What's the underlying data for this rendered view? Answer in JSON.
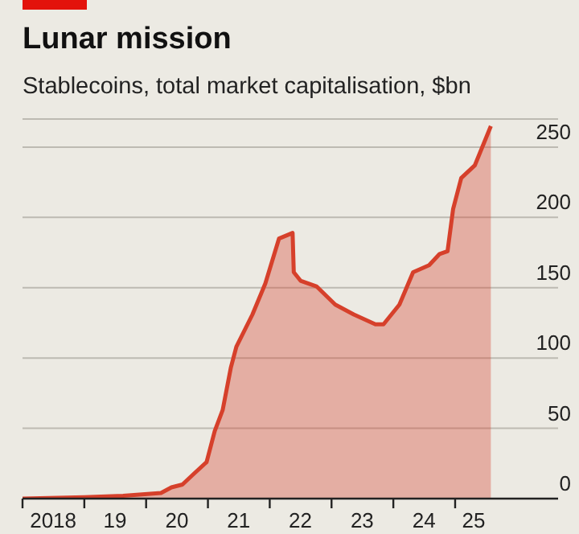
{
  "chart_data": {
    "type": "area",
    "title": "Lunar mission",
    "subtitle": "Stablecoins, total market capitalisation, $bn",
    "x": [
      "2018-01-01",
      "2019-01-01",
      "2019-08-18",
      "2020-03-29",
      "2020-05-30",
      "2020-08-03",
      "2020-10-04",
      "2020-12-24",
      "2021-02-10",
      "2021-03-29",
      "2021-05-16",
      "2021-06-18",
      "2021-09-21",
      "2021-12-06",
      "2022-02-25",
      "2022-05-16",
      "2022-05-23",
      "2022-07-02",
      "2022-10-04",
      "2023-01-23",
      "2023-05-12",
      "2023-09-17",
      "2023-11-04",
      "2024-02-06",
      "2024-04-27",
      "2024-07-31",
      "2024-10-01",
      "2024-11-17",
      "2024-12-20",
      "2025-02-06",
      "2025-04-27",
      "2025-07-31"
    ],
    "series": [
      {
        "color": "#d6402b",
        "values": [
          0,
          1,
          2,
          4,
          8,
          10,
          17,
          26,
          48,
          63,
          93,
          108,
          131,
          153,
          185,
          189,
          161,
          155,
          151,
          138,
          131,
          124,
          124,
          138,
          161,
          166,
          174,
          176,
          206,
          228,
          237,
          265
        ]
      }
    ],
    "xlim": [
      "2018-01-01",
      "2026-09-01"
    ],
    "xticks": [
      {
        "value": "2018-01-01",
        "label": null
      },
      {
        "value": "2018-07-01",
        "label": "2018"
      },
      {
        "value": "2019-01-01",
        "label": null
      },
      {
        "value": "2019-07-01",
        "label": "19"
      },
      {
        "value": "2020-01-01",
        "label": null
      },
      {
        "value": "2020-07-01",
        "label": "20"
      },
      {
        "value": "2021-01-01",
        "label": null
      },
      {
        "value": "2021-07-01",
        "label": "21"
      },
      {
        "value": "2022-01-01",
        "label": null
      },
      {
        "value": "2022-07-01",
        "label": "22"
      },
      {
        "value": "2023-01-01",
        "label": null
      },
      {
        "value": "2023-07-01",
        "label": "23"
      },
      {
        "value": "2024-01-01",
        "label": null
      },
      {
        "value": "2024-07-01",
        "label": "24"
      },
      {
        "value": "2025-01-01",
        "label": null
      },
      {
        "value": "2025-04-20",
        "label": "25"
      }
    ],
    "ylim": [
      0,
      270
    ],
    "yticks": [
      0,
      50,
      100,
      150,
      200,
      250
    ],
    "grid": "y"
  }
}
